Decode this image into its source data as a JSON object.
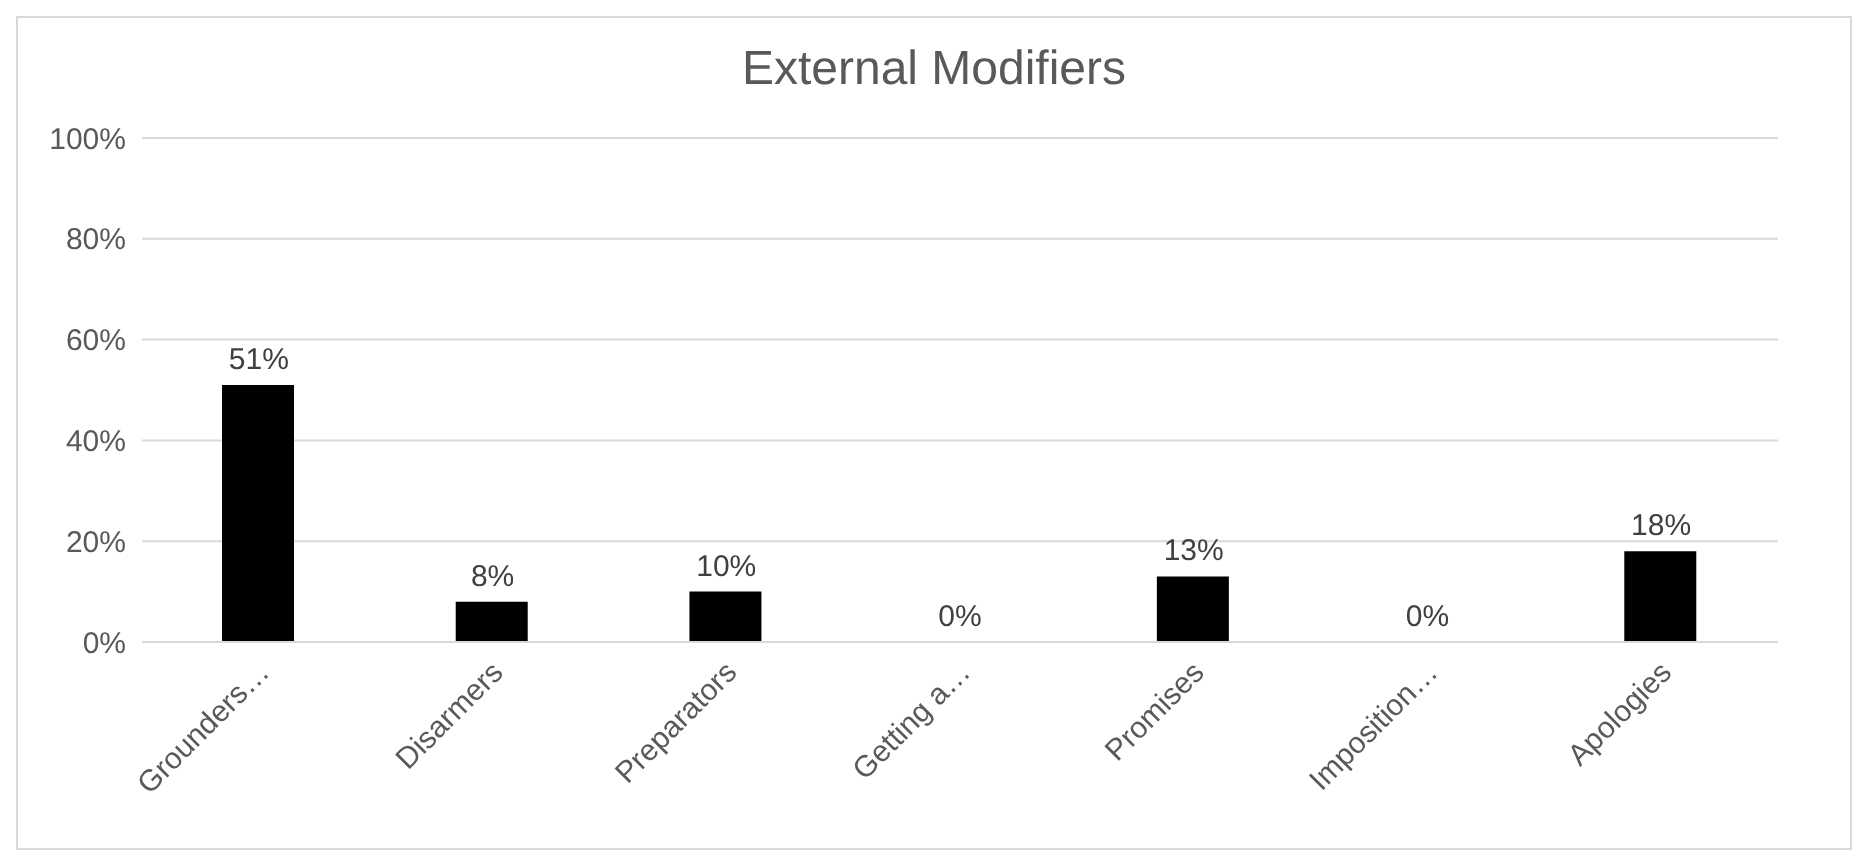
{
  "chart_data": {
    "type": "bar",
    "title": "External Modifiers",
    "categories": [
      "Grounders…",
      "Disarmers",
      "Preparators",
      "Getting a…",
      "Promises",
      "Imposition…",
      "Apologies"
    ],
    "values": [
      51,
      8,
      10,
      0,
      13,
      0,
      18
    ],
    "value_labels": [
      "51%",
      "8%",
      "10%",
      "0%",
      "13%",
      "0%",
      "18%"
    ],
    "color": "#000000",
    "ylim": [
      0,
      100
    ],
    "yticks": [
      {
        "value": 0,
        "label": "0%"
      },
      {
        "value": 20,
        "label": "20%"
      },
      {
        "value": 40,
        "label": "40%"
      },
      {
        "value": 60,
        "label": "60%"
      },
      {
        "value": 80,
        "label": "80%"
      },
      {
        "value": 100,
        "label": "100%"
      }
    ],
    "grid": "y"
  }
}
